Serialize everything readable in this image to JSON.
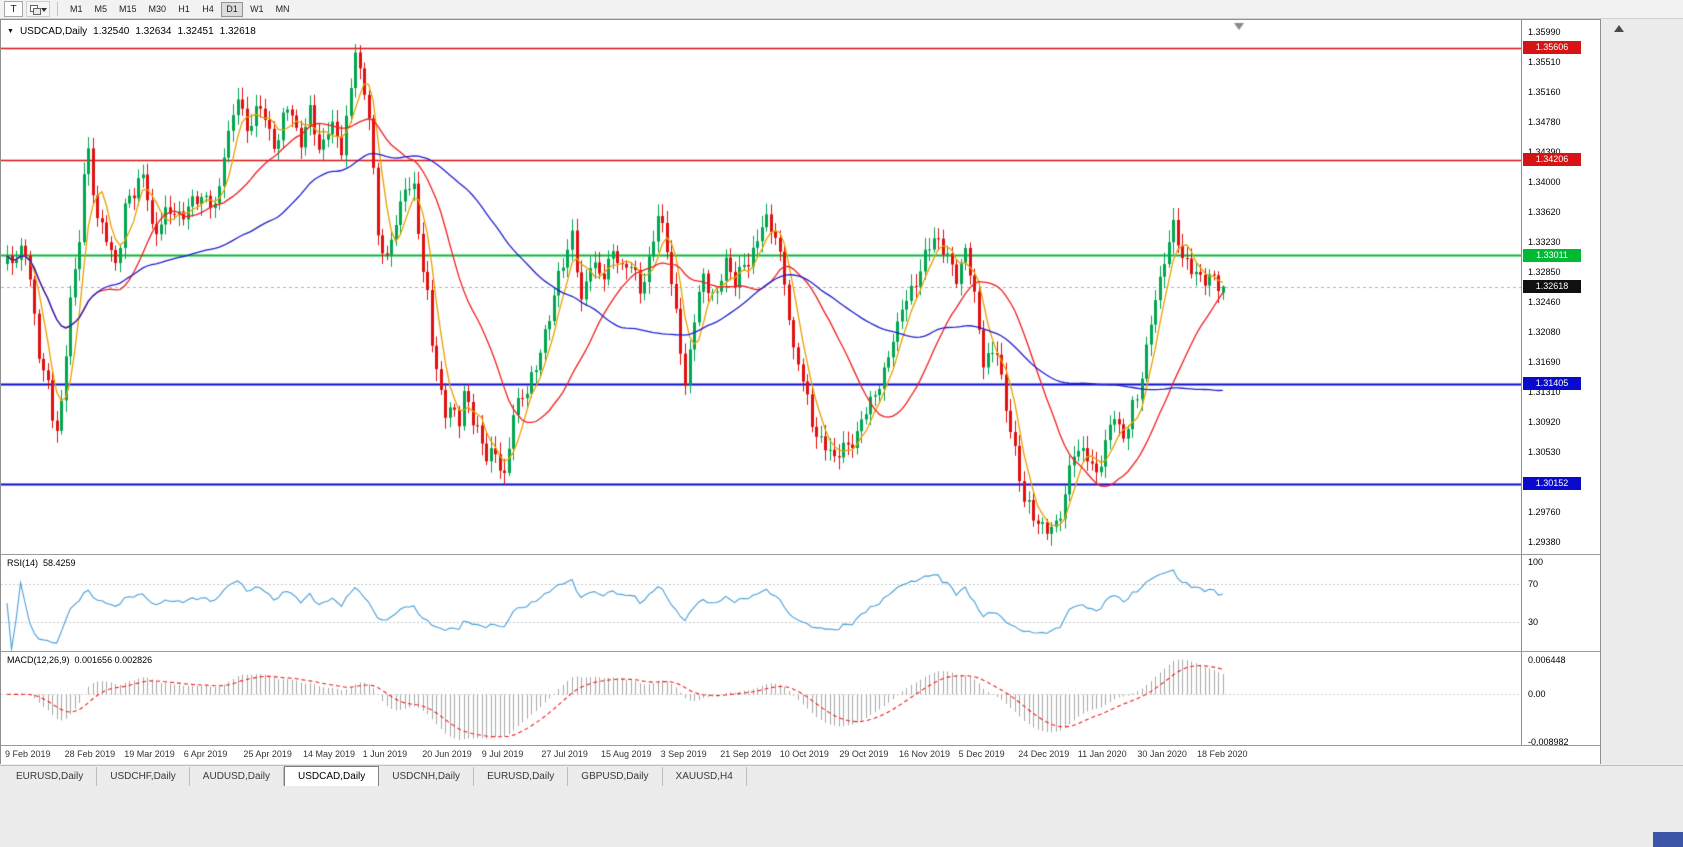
{
  "window": {
    "bg": "#ececec"
  },
  "toolbar": {
    "text_tool_label": "T",
    "timeframes": [
      "M1",
      "M5",
      "M15",
      "M30",
      "H1",
      "H4",
      "D1",
      "W1",
      "MN"
    ],
    "active_timeframe": "D1"
  },
  "chart": {
    "dropdown_glyph": "▼",
    "symbol_period": "USDCAD,Daily",
    "open": "1.32540",
    "high": "1.32634",
    "low": "1.32451",
    "close": "1.32618"
  },
  "price_axis": {
    "labels": [
      "1.35990",
      "1.35510",
      "1.35160",
      "1.34780",
      "1.34390",
      "1.34000",
      "1.33620",
      "1.33230",
      "1.32850",
      "1.32460",
      "1.32080",
      "1.31690",
      "1.31310",
      "1.30920",
      "1.30530",
      "1.30150",
      "1.29760",
      "1.29380"
    ],
    "tags": [
      {
        "value": "1.35606",
        "price": 1.35606,
        "color": "#d61414",
        "name": "resistance-upper"
      },
      {
        "value": "1.34206",
        "price": 1.34206,
        "color": "#d61414",
        "name": "resistance-lower"
      },
      {
        "value": "1.33011",
        "price": 1.33011,
        "color": "#00ba33",
        "name": "pivot-level"
      },
      {
        "value": "1.32618",
        "price": 1.32618,
        "color": "#101010",
        "name": "current-price"
      },
      {
        "value": "1.31405",
        "price": 1.31405,
        "color": "#0a0acc",
        "name": "support-upper"
      },
      {
        "value": "1.30152",
        "price": 1.30152,
        "color": "#0a0acc",
        "name": "support-lower"
      }
    ]
  },
  "chart_data": {
    "type": "candlestick",
    "symbol": "USDCAD",
    "period": "Daily",
    "visible_range": {
      "start": "9 Feb 2019",
      "end": "18 Feb 2020"
    },
    "price_top": 1.3595,
    "price_bottom": 1.29275,
    "candle_count": 270,
    "candle_spacing": 4.52,
    "current_price": 1.32618,
    "last_candle": {
      "open": 1.3254,
      "high": 1.32634,
      "low": 1.32451,
      "close": 1.32618
    },
    "horizontal_levels": [
      {
        "price": 1.35606,
        "color": "#d61414",
        "width": 1.3
      },
      {
        "price": 1.34206,
        "color": "#d61414",
        "width": 1.3
      },
      {
        "price": 1.33011,
        "color": "#00ba33",
        "width": 2
      },
      {
        "price": 1.31405,
        "color": "#0a0acc",
        "width": 2
      },
      {
        "price": 1.30152,
        "color": "#0a0acc",
        "width": 2
      }
    ],
    "bull_color": "#00a650",
    "bear_color": "#e01010",
    "moving_averages": [
      {
        "period": 5,
        "color": "#e8a000"
      },
      {
        "period": 21,
        "color": "#ee2020"
      },
      {
        "period": 55,
        "color": "#2020cc"
      }
    ],
    "price_waypoints": [
      [
        0,
        1.329
      ],
      [
        4,
        1.3305
      ],
      [
        8,
        1.315
      ],
      [
        11,
        1.3085
      ],
      [
        15,
        1.328
      ],
      [
        18,
        1.343
      ],
      [
        20,
        1.335
      ],
      [
        24,
        1.329
      ],
      [
        27,
        1.338
      ],
      [
        30,
        1.34
      ],
      [
        32,
        1.333
      ],
      [
        36,
        1.336
      ],
      [
        39,
        1.3345
      ],
      [
        42,
        1.338
      ],
      [
        46,
        1.336
      ],
      [
        49,
        1.345
      ],
      [
        51,
        1.351
      ],
      [
        53,
        1.345
      ],
      [
        56,
        1.349
      ],
      [
        59,
        1.344
      ],
      [
        62,
        1.348
      ],
      [
        65,
        1.345
      ],
      [
        67,
        1.348
      ],
      [
        69,
        1.343
      ],
      [
        72,
        1.3465
      ],
      [
        74,
        1.344
      ],
      [
        76,
        1.35
      ],
      [
        77,
        1.3555
      ],
      [
        78,
        1.353
      ],
      [
        80,
        1.348
      ],
      [
        82,
        1.333
      ],
      [
        84,
        1.329
      ],
      [
        86,
        1.334
      ],
      [
        88,
        1.3395
      ],
      [
        90,
        1.338
      ],
      [
        92,
        1.328
      ],
      [
        95,
        1.316
      ],
      [
        97,
        1.311
      ],
      [
        100,
        1.309
      ],
      [
        101,
        1.313
      ],
      [
        104,
        1.3085
      ],
      [
        106,
        1.305
      ],
      [
        108,
        1.3045
      ],
      [
        110,
        1.303
      ],
      [
        112,
        1.3105
      ],
      [
        115,
        1.313
      ],
      [
        117,
        1.316
      ],
      [
        119,
        1.321
      ],
      [
        121,
        1.3245
      ],
      [
        123,
        1.329
      ],
      [
        125,
        1.333
      ],
      [
        127,
        1.3245
      ],
      [
        129,
        1.329
      ],
      [
        131,
        1.327
      ],
      [
        134,
        1.331
      ],
      [
        136,
        1.328
      ],
      [
        138,
        1.329
      ],
      [
        140,
        1.3255
      ],
      [
        142,
        1.33
      ],
      [
        144,
        1.3345
      ],
      [
        146,
        1.331
      ],
      [
        148,
        1.323
      ],
      [
        150,
        1.314
      ],
      [
        152,
        1.322
      ],
      [
        154,
        1.327
      ],
      [
        157,
        1.3255
      ],
      [
        159,
        1.329
      ],
      [
        161,
        1.3265
      ],
      [
        163,
        1.329
      ],
      [
        165,
        1.331
      ],
      [
        168,
        1.334
      ],
      [
        170,
        1.333
      ],
      [
        172,
        1.327
      ],
      [
        174,
        1.318
      ],
      [
        177,
        1.312
      ],
      [
        179,
        1.308
      ],
      [
        181,
        1.306
      ],
      [
        183,
        1.3045
      ],
      [
        185,
        1.306
      ],
      [
        188,
        1.308
      ],
      [
        190,
        1.31
      ],
      [
        192,
        1.313
      ],
      [
        194,
        1.3155
      ],
      [
        196,
        1.32
      ],
      [
        199,
        1.324
      ],
      [
        201,
        1.3275
      ],
      [
        203,
        1.33
      ],
      [
        205,
        1.332
      ],
      [
        208,
        1.33
      ],
      [
        210,
        1.328
      ],
      [
        212,
        1.33
      ],
      [
        214,
        1.325
      ],
      [
        216,
        1.317
      ],
      [
        219,
        1.3185
      ],
      [
        221,
        1.31
      ],
      [
        223,
        1.306
      ],
      [
        225,
        1.3
      ],
      [
        227,
        1.297
      ],
      [
        230,
        1.2955
      ],
      [
        232,
        1.297
      ],
      [
        234,
        1.3
      ],
      [
        236,
        1.305
      ],
      [
        238,
        1.306
      ],
      [
        241,
        1.303
      ],
      [
        243,
        1.306
      ],
      [
        245,
        1.31
      ],
      [
        247,
        1.308
      ],
      [
        250,
        1.312
      ],
      [
        252,
        1.318
      ],
      [
        254,
        1.325
      ],
      [
        256,
        1.33
      ],
      [
        258,
        1.333
      ],
      [
        260,
        1.33
      ],
      [
        263,
        1.328
      ],
      [
        265,
        1.327
      ],
      [
        267,
        1.3265
      ],
      [
        269,
        1.3262
      ]
    ]
  },
  "rsi": {
    "title": "RSI(14)",
    "value": "58.4259",
    "axis_labels": [
      "100",
      "70",
      "30"
    ],
    "axis_values": [
      100,
      70,
      30
    ],
    "level_lines": [
      70,
      30
    ],
    "line_color": "#4a9fd8"
  },
  "macd": {
    "title": "MACD(12,26,9)",
    "values": "0.001656 0.002826",
    "axis_labels": [
      "0.006448",
      "0.00",
      "-0.008982"
    ],
    "axis_values": [
      0.006448,
      0,
      -0.008982
    ],
    "axis_max": 0.006448,
    "axis_min": -0.008982,
    "histogram_color": "#a8a8a8",
    "signal_color": "#ee2020"
  },
  "date_axis": {
    "labels": [
      "9 Feb 2019",
      "28 Feb 2019",
      "19 Mar 2019",
      "6 Apr 2019",
      "25 Apr 2019",
      "14 May 2019",
      "1 Jun 2019",
      "20 Jun 2019",
      "9 Jul 2019",
      "27 Jul 2019",
      "15 Aug 2019",
      "3 Sep 2019",
      "21 Sep 2019",
      "10 Oct 2019",
      "29 Oct 2019",
      "16 Nov 2019",
      "5 Dec 2019",
      "24 Dec 2019",
      "11 Jan 2020",
      "30 Jan 2020",
      "18 Feb 2020"
    ]
  },
  "tabs": {
    "items": [
      "EURUSD,Daily",
      "USDCHF,Daily",
      "AUDUSD,Daily",
      "USDCAD,Daily",
      "USDCNH,Daily",
      "EURUSD,Daily",
      "GBPUSD,Daily",
      "XAUUSD,H4"
    ],
    "active": "USDCAD,Daily"
  }
}
